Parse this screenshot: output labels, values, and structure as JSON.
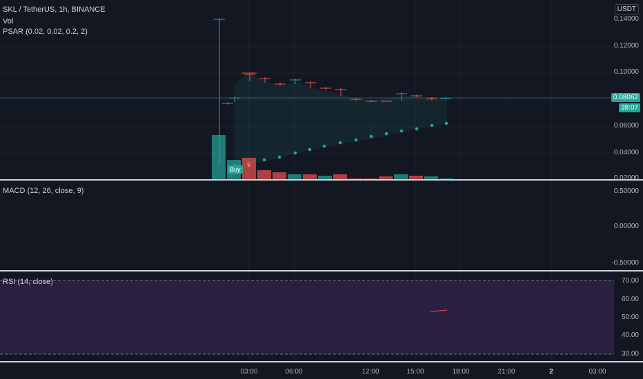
{
  "header": {
    "symbol_title": "SKL / TetherUS, 1h, BINANCE",
    "volume_label": "Vol",
    "psar_label": "PSAR (0.02, 0.02, 0.2, 2)",
    "currency": "USDT"
  },
  "price_scale": {
    "ticks": [
      "0.14000",
      "0.12000",
      "0.10000",
      "0.06000",
      "0.04000",
      "0.02000"
    ],
    "last_price": "0.08062",
    "countdown": "38:07",
    "last_price_color": "#26a69a"
  },
  "macd": {
    "label": "MACD (12, 26, close, 9)",
    "ticks": [
      "0.50000",
      "0.00000",
      "-0.50000"
    ]
  },
  "rsi": {
    "label": "RSI (14, close)",
    "ticks": [
      "70.00",
      "60.00",
      "50.00",
      "40.00",
      "30.00"
    ]
  },
  "time_axis": {
    "labels": [
      "03:00",
      "06:00",
      "12:00",
      "15:00",
      "18:00",
      "21:00",
      "2",
      "03:00"
    ]
  },
  "buy_signal": "Buy",
  "colors": {
    "up": "#26a69a",
    "down": "#ef5350",
    "background": "#131722",
    "rsi_band": "#2a2140"
  }
}
